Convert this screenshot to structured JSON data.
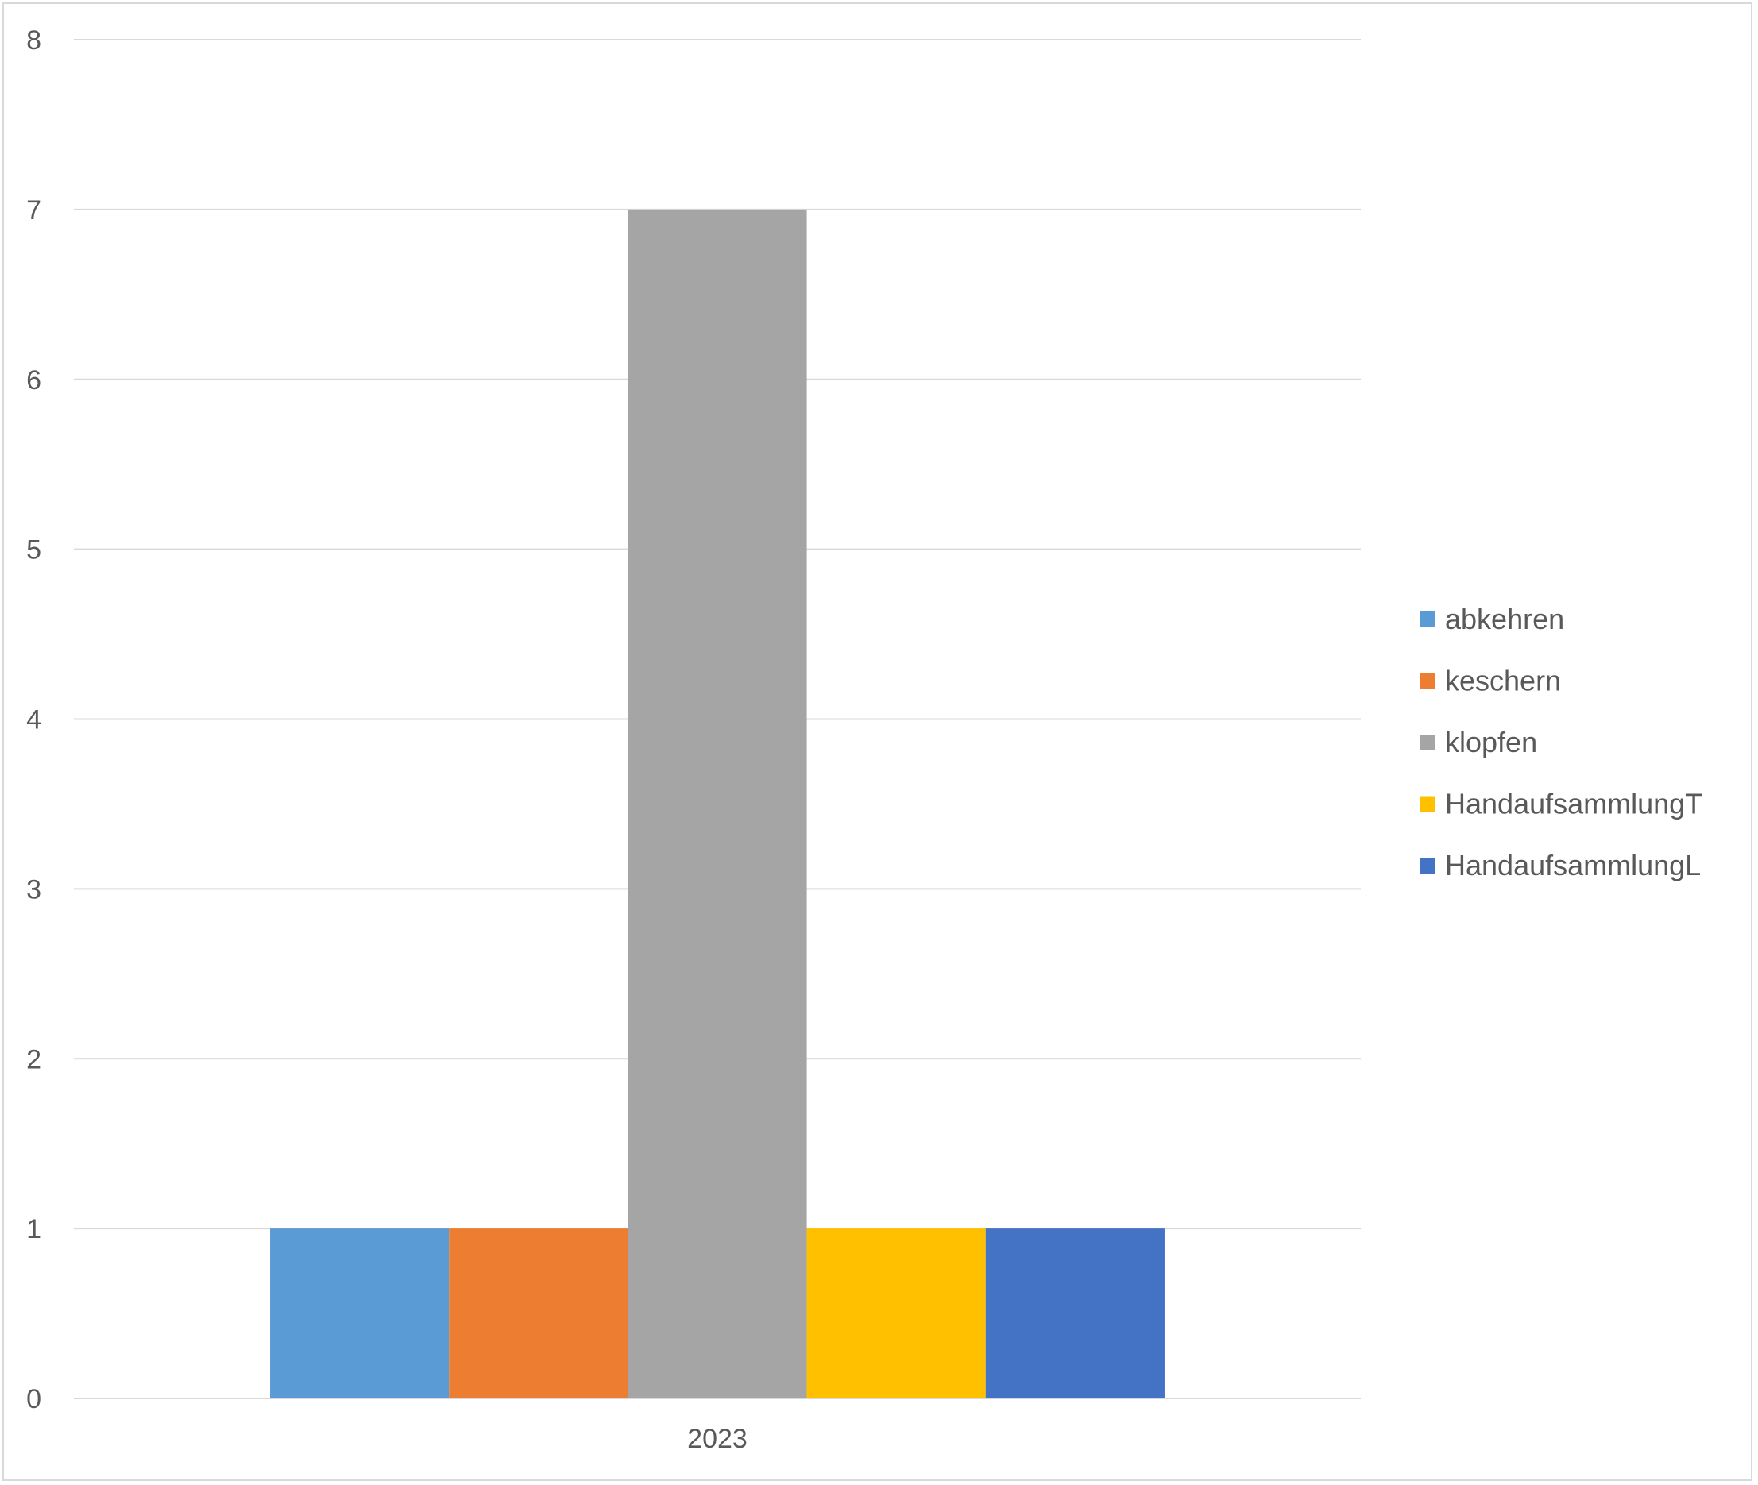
{
  "chart_data": {
    "type": "bar",
    "title": "",
    "xlabel": "",
    "ylabel": "",
    "categories": [
      "2023"
    ],
    "series": [
      {
        "name": "abkehren",
        "values": [
          1
        ],
        "color": "#5B9BD5"
      },
      {
        "name": "keschern",
        "values": [
          1
        ],
        "color": "#ED7D31"
      },
      {
        "name": "klopfen",
        "values": [
          7
        ],
        "color": "#A5A5A5"
      },
      {
        "name": "HandaufsammlungT",
        "values": [
          1
        ],
        "color": "#FFC000"
      },
      {
        "name": "HandaufsammlungL",
        "values": [
          1
        ],
        "color": "#4472C4"
      }
    ],
    "ylim": [
      0,
      8
    ],
    "yticks": [
      "0",
      "1",
      "2",
      "3",
      "4",
      "5",
      "6",
      "7",
      "8"
    ],
    "grid": true,
    "legend_position": "right",
    "gridline_color": "#d9d9d9"
  }
}
